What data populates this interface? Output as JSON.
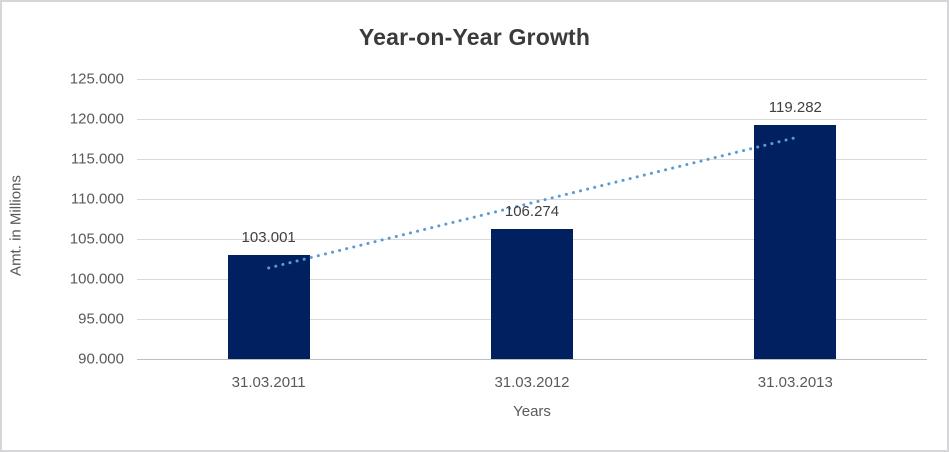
{
  "chart_data": {
    "type": "bar",
    "title": "Year-on-Year Growth",
    "xlabel": "Years",
    "ylabel": "Amt. in Millions",
    "categories": [
      "31.03.2011",
      "31.03.2012",
      "31.03.2013"
    ],
    "values": [
      103.001,
      106.274,
      119.282
    ],
    "value_labels": [
      "103.001",
      "106.274",
      "119.282"
    ],
    "ylim": [
      90,
      125
    ],
    "ytick_step": 5,
    "ytick_labels": [
      "90.000",
      "95.000",
      "100.000",
      "105.000",
      "110.000",
      "115.000",
      "120.000",
      "125.000"
    ],
    "grid": true,
    "legend": "none",
    "colors": {
      "bar_fill": "#002060",
      "trendline": "#5b9bd5",
      "gridline": "#d9d9d9",
      "axis_line": "#bfbfbf",
      "title_text": "#3b3b3b",
      "label_text": "#595959",
      "value_label_text": "#404040"
    },
    "trendline": {
      "type": "linear",
      "style": "dotted"
    }
  }
}
